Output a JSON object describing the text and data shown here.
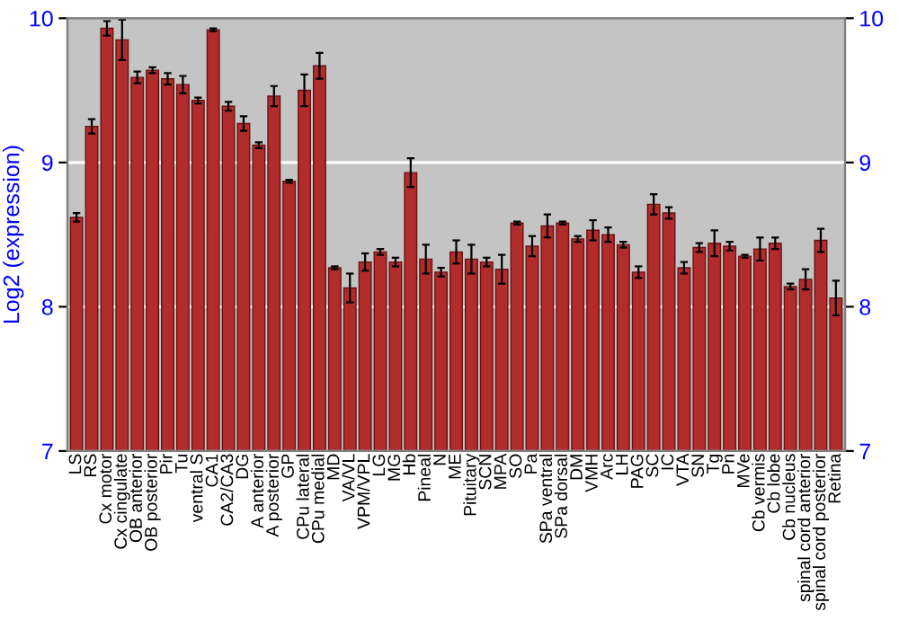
{
  "chart_data": {
    "type": "bar",
    "ylabel": "Log2 (expression)",
    "categories": [
      "LS",
      "RS",
      "Cx motor",
      "Cx cingulate",
      "OB anterior",
      "OB posterior",
      "Pir",
      "Tu",
      "ventral S",
      "CA1",
      "CA2/CA3",
      "DG",
      "A anterior",
      "A posterior",
      "GP",
      "CPu lateral",
      "CPu medial",
      "MD",
      "VA/VL",
      "VPM/VPL",
      "LG",
      "MG",
      "Hb",
      "Pineal",
      "N",
      "ME",
      "Pituitary",
      "SCN",
      "MPA",
      "SO",
      "Pa",
      "SPa ventral",
      "SPa dorsal",
      "DM",
      "VMH",
      "Arc",
      "LH",
      "PAG",
      "SC",
      "IC",
      "VTA",
      "SN",
      "Tg",
      "Pn",
      "MVe",
      "Cb vermis",
      "Cb lobe",
      "Cb nucleus",
      "spinal cord anterior",
      "spinal cord posterior",
      "Retina"
    ],
    "values": [
      8.62,
      9.25,
      9.93,
      9.85,
      9.59,
      9.64,
      9.58,
      9.54,
      9.43,
      9.92,
      9.39,
      9.27,
      9.12,
      9.46,
      8.87,
      9.5,
      9.67,
      8.27,
      8.13,
      8.31,
      8.38,
      8.31,
      8.93,
      8.33,
      8.24,
      8.38,
      8.33,
      8.31,
      8.26,
      8.58,
      8.42,
      8.56,
      8.58,
      8.47,
      8.53,
      8.5,
      8.43,
      8.24,
      8.71,
      8.65,
      8.27,
      8.41,
      8.44,
      8.42,
      8.35,
      8.4,
      8.44,
      8.14,
      8.19,
      8.46,
      8.06
    ],
    "errors": [
      0.03,
      0.05,
      0.05,
      0.14,
      0.04,
      0.02,
      0.04,
      0.06,
      0.02,
      0.01,
      0.03,
      0.05,
      0.02,
      0.07,
      0.01,
      0.11,
      0.09,
      0.01,
      0.1,
      0.06,
      0.02,
      0.03,
      0.1,
      0.1,
      0.03,
      0.08,
      0.1,
      0.03,
      0.1,
      0.01,
      0.07,
      0.08,
      0.01,
      0.02,
      0.07,
      0.05,
      0.02,
      0.04,
      0.07,
      0.04,
      0.04,
      0.03,
      0.09,
      0.03,
      0.01,
      0.08,
      0.04,
      0.02,
      0.07,
      0.08,
      0.12
    ],
    "color": "#b22c2c",
    "ylim": [
      7,
      10
    ],
    "yticks": [
      7,
      8,
      9,
      10
    ],
    "y2lim": [
      7,
      10
    ],
    "y2ticks": [
      7,
      8,
      9,
      10
    ],
    "grid": "y",
    "legend": false
  }
}
